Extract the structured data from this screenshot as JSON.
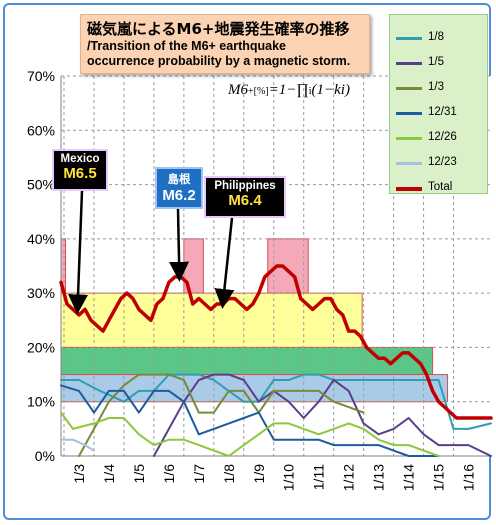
{
  "title": {
    "jp": "磁気嵐によるM6+地震発生確率の推移",
    "en_line1": "/Transition of the M6+ earthquake",
    "en_line2": "occurrence probability by a magnetic storm."
  },
  "formula": {
    "lhs": "M6",
    "sub": "+[%]",
    "rhs": "=1−∏",
    "sub_i": "i",
    "tail": "(1−ki)"
  },
  "callouts": [
    {
      "place": "Mexico",
      "magnitude": "M6.5",
      "color": "#000000"
    },
    {
      "place": "島根",
      "magnitude": "M6.2",
      "color": "#1f6fc4"
    },
    {
      "place": "Philippines",
      "magnitude": "M6.4",
      "color": "#000000"
    }
  ],
  "chart_data": {
    "type": "line",
    "y_axis": {
      "min": 0,
      "max": 70,
      "step": 10,
      "unit": "%",
      "tick_labels": [
        "0%",
        "10%",
        "20%",
        "30%",
        "40%",
        "50%",
        "60%",
        "70%"
      ]
    },
    "x_axis": {
      "tick_labels": [
        "1/3",
        "1/4",
        "1/5",
        "1/6",
        "1/7",
        "1/8",
        "1/9",
        "1/10",
        "1/11",
        "1/12",
        "1/13",
        "1/14",
        "1/15",
        "1/16"
      ],
      "domain": [
        2.4,
        16.75
      ]
    },
    "grid": "horizontal+vertical dashed",
    "legend_position": "top-right",
    "bands": [
      {
        "name": "",
        "ymin": 30,
        "ymax": 40,
        "x_ranges": [
          [
            2.4,
            2.55
          ],
          [
            6.5,
            7.15
          ],
          [
            9.3,
            10.65
          ]
        ],
        "color": "#f5a9b8"
      },
      {
        "name": "",
        "ymin": 20,
        "ymax": 30,
        "x_ranges": [
          [
            2.4,
            12.45
          ]
        ],
        "color": "#ffff99"
      },
      {
        "name": "",
        "ymin": 15,
        "ymax": 20,
        "x_ranges": [
          [
            2.4,
            14.8
          ]
        ],
        "color": "#5cc689"
      },
      {
        "name": "",
        "ymin": 10,
        "ymax": 15,
        "x_ranges": [
          [
            2.4,
            15.3
          ]
        ],
        "color": "#a9cbe8"
      }
    ],
    "series": [
      {
        "name": "1/8",
        "color": "#2e9fb0",
        "width": 2,
        "x": [
          2.4,
          3.0,
          3.7,
          4.5,
          5.0,
          5.5,
          6.0,
          7.0,
          7.5,
          8.0,
          8.5,
          9.0,
          9.5,
          10.0,
          10.5,
          11.0,
          11.5,
          12.0,
          13.0,
          14.0,
          15.0,
          15.5,
          16.0,
          16.75
        ],
        "y": [
          14,
          14,
          12,
          10,
          12,
          12,
          15,
          15,
          14,
          12,
          10,
          10,
          14,
          14,
          15,
          15,
          14,
          14,
          14,
          14,
          14,
          5,
          5,
          6
        ]
      },
      {
        "name": "1/5",
        "color": "#5a3e8b",
        "width": 2,
        "x": [
          5.5,
          6.0,
          6.5,
          7.0,
          7.5,
          8.0,
          8.5,
          9.0,
          9.5,
          10.0,
          10.5,
          11.0,
          11.5,
          12.0,
          12.5,
          13.0,
          13.5,
          14.0,
          14.5,
          15.0,
          15.5,
          16.0,
          16.75
        ],
        "y": [
          0,
          5,
          10,
          14,
          15,
          15,
          14,
          10,
          12,
          10,
          7,
          10,
          14,
          12,
          6,
          4,
          5,
          7,
          4,
          2,
          2,
          2,
          0
        ]
      },
      {
        "name": "1/3",
        "color": "#78893a",
        "width": 2,
        "x": [
          3.0,
          3.5,
          4.0,
          4.5,
          5.0,
          5.5,
          6.0,
          6.5,
          7.0,
          7.5,
          8.0,
          8.5,
          9.0,
          9.5,
          10.0,
          10.5,
          11.0,
          11.5,
          12.0,
          12.5
        ],
        "y": [
          0,
          5,
          10,
          13,
          15,
          15,
          15,
          14,
          8,
          8,
          12,
          12,
          8,
          12,
          12,
          12,
          12,
          10,
          9,
          8
        ]
      },
      {
        "name": "12/31",
        "color": "#1a5c9e",
        "width": 2,
        "x": [
          2.4,
          3.0,
          3.5,
          4.0,
          4.5,
          5.0,
          5.5,
          6.0,
          6.5,
          7.0,
          7.5,
          8.0,
          8.5,
          9.0,
          9.5,
          10.0,
          10.5,
          11.0,
          11.5,
          12.0,
          12.5,
          13.0,
          13.5,
          14.0,
          14.5,
          15.0
        ],
        "y": [
          13,
          12,
          8,
          12,
          12,
          8,
          12,
          12,
          10,
          4,
          5,
          6,
          7,
          8,
          3,
          3,
          3,
          3,
          2,
          2,
          2,
          2,
          1,
          0,
          0,
          0
        ]
      },
      {
        "name": "12/26",
        "color": "#8dc63f",
        "width": 2,
        "x": [
          2.4,
          2.8,
          3.5,
          4.0,
          4.5,
          5.0,
          5.5,
          6.0,
          6.5,
          7.0,
          7.5,
          8.0,
          8.5,
          9.0,
          9.5,
          10.0,
          10.5,
          11.0,
          11.5,
          12.0,
          12.5,
          13.0,
          13.5,
          14.0,
          14.5,
          15.0
        ],
        "y": [
          8,
          5,
          6,
          7,
          7,
          4,
          2,
          3,
          3,
          2,
          1,
          0,
          2,
          4,
          6,
          6,
          5,
          4,
          5,
          6,
          5,
          3,
          2,
          2,
          1,
          0
        ]
      },
      {
        "name": "12/23",
        "color": "#a8c0e0",
        "width": 2,
        "x": [
          2.4,
          2.8,
          3.2,
          3.5
        ],
        "y": [
          3,
          3,
          2,
          1
        ]
      },
      {
        "name": "Total",
        "color": "#c00000",
        "width": 3.5,
        "x": [
          2.4,
          2.5,
          2.6,
          2.8,
          3.0,
          3.2,
          3.4,
          3.6,
          3.8,
          4.0,
          4.2,
          4.4,
          4.6,
          4.8,
          5.0,
          5.2,
          5.4,
          5.6,
          5.8,
          6.0,
          6.2,
          6.4,
          6.6,
          6.8,
          7.0,
          7.2,
          7.4,
          7.6,
          7.8,
          8.0,
          8.2,
          8.4,
          8.6,
          8.8,
          9.0,
          9.2,
          9.4,
          9.6,
          9.8,
          10.0,
          10.2,
          10.4,
          10.6,
          10.8,
          11.0,
          11.2,
          11.4,
          11.6,
          11.8,
          12.0,
          12.2,
          12.4,
          12.6,
          12.8,
          13.0,
          13.2,
          13.4,
          13.6,
          13.8,
          14.0,
          14.2,
          14.4,
          14.6,
          14.8,
          15.0,
          15.2,
          15.4,
          15.6,
          15.8,
          16.0,
          16.2,
          16.4,
          16.6,
          16.75
        ],
        "y": [
          32,
          30,
          28,
          27,
          26,
          27,
          25,
          24,
          23,
          25,
          27,
          29,
          30,
          29,
          27,
          26,
          25,
          28,
          29,
          32,
          33,
          33,
          32,
          28,
          29,
          28,
          27,
          28,
          28,
          29,
          29,
          28,
          27,
          28,
          30,
          33,
          34,
          35,
          35,
          34,
          33,
          29,
          28,
          27,
          28,
          29,
          29,
          27,
          26,
          23,
          23,
          22,
          20,
          19,
          18,
          18,
          17,
          18,
          19,
          19,
          18,
          17,
          15,
          12,
          10,
          9,
          8,
          7,
          7,
          7,
          7,
          7,
          7,
          7
        ]
      }
    ]
  }
}
